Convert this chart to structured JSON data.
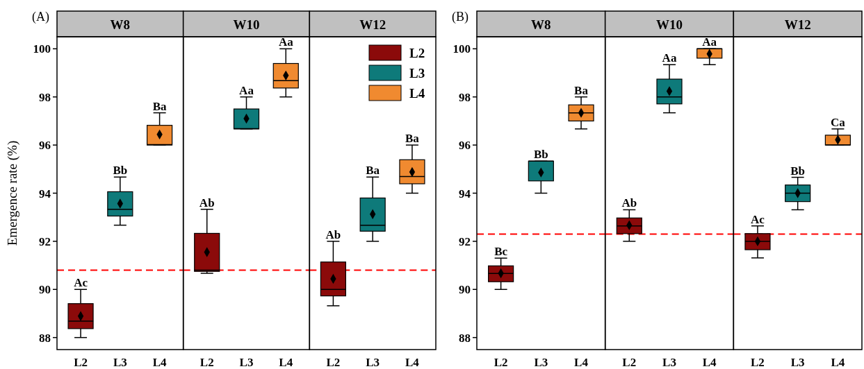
{
  "chart_data": [
    {
      "type": "box",
      "title": "W8",
      "ylabel": "Emergence rate (%)",
      "categories": [
        "L2",
        "L3",
        "L4"
      ],
      "ylim": [
        87.5,
        100.5
      ],
      "yticks": [
        88,
        90,
        92,
        94,
        96,
        98,
        100
      ],
      "marker": "diamond",
      "legend": false,
      "series": [
        {
          "color": "#8b0a0a",
          "boxes": [
            {
              "low": 88,
              "q1": 88.37,
              "median": 88.68,
              "q3": 89.41,
              "high": 90,
              "mean": 88.89
            },
            null,
            null
          ]
        },
        {
          "color": "#0e7a7a",
          "boxes": [
            null,
            {
              "low": 92.67,
              "q1": 93.05,
              "median": 93.33,
              "q3": 94.06,
              "high": 94.67,
              "mean": 93.57
            },
            null
          ]
        },
        {
          "color": "#f08a30",
          "boxes": [
            null,
            null,
            {
              "low": 96,
              "q1": 96,
              "median": 96.02,
              "q3": 96.82,
              "high": 97.34,
              "mean": 96.44
            }
          ]
        }
      ],
      "ref_lines": [
        {
          "axis": "y",
          "value": 90.8,
          "color": "#ff0000",
          "line_style": "dashed"
        }
      ],
      "annotations": [
        "(A)",
        {
          "text": "Ac",
          "x": "L2",
          "y": 90
        },
        {
          "text": "Bb",
          "x": "L3",
          "y": 94.67
        },
        {
          "text": "Ba",
          "x": "L4",
          "y": 97.34
        }
      ]
    },
    {
      "type": "box",
      "title": "W10",
      "categories": [
        "L2",
        "L3",
        "L4"
      ],
      "ylim": [
        87.5,
        100.5
      ],
      "tick_labels": "x",
      "marker": "diamond",
      "legend": false,
      "series": [
        {
          "color": "#8b0a0a",
          "boxes": [
            {
              "low": 90.67,
              "q1": 90.75,
              "median": 90.8,
              "q3": 92.33,
              "high": 93.33,
              "mean": 91.55
            },
            null,
            null
          ]
        },
        {
          "color": "#0e7a7a",
          "boxes": [
            null,
            {
              "low": 96.67,
              "q1": 96.67,
              "median": 96.68,
              "q3": 97.5,
              "high": 98,
              "mean": 97.1
            },
            null
          ]
        },
        {
          "color": "#f08a30",
          "boxes": [
            null,
            null,
            {
              "low": 98,
              "q1": 98.37,
              "median": 98.68,
              "q3": 99.39,
              "high": 100,
              "mean": 98.89
            }
          ]
        }
      ],
      "ref_lines": [
        {
          "axis": "y",
          "value": 90.8,
          "color": "#ff0000",
          "line_style": "dashed"
        }
      ],
      "annotations": [
        {
          "text": "Ab",
          "x": "L2",
          "y": 93.33
        },
        {
          "text": "Aa",
          "x": "L3",
          "y": 98
        },
        {
          "text": "Aa",
          "x": "L4",
          "y": 100
        }
      ]
    },
    {
      "type": "box",
      "title": "W12",
      "categories": [
        "L2",
        "L3",
        "L4"
      ],
      "ylim": [
        87.5,
        100.5
      ],
      "tick_labels": "x",
      "marker": "diamond",
      "legend": "top right",
      "series": [
        {
          "name": "L2",
          "color": "#8b0a0a",
          "boxes": [
            {
              "low": 89.32,
              "q1": 89.73,
              "median": 90,
              "q3": 91.14,
              "high": 92,
              "mean": 90.44
            },
            null,
            null
          ]
        },
        {
          "name": "L3",
          "color": "#0e7a7a",
          "boxes": [
            null,
            {
              "low": 92,
              "q1": 92.42,
              "median": 92.67,
              "q3": 93.8,
              "high": 94.67,
              "mean": 93.13
            },
            null
          ]
        },
        {
          "name": "L4",
          "color": "#f08a30",
          "boxes": [
            null,
            null,
            {
              "low": 94,
              "q1": 94.39,
              "median": 94.69,
              "q3": 95.39,
              "high": 96,
              "mean": 94.88
            }
          ]
        }
      ],
      "ref_lines": [
        {
          "axis": "y",
          "value": 90.8,
          "color": "#ff0000",
          "line_style": "dashed"
        }
      ],
      "annotations": [
        {
          "text": "Ab",
          "x": "L2",
          "y": 92
        },
        {
          "text": "Ba",
          "x": "L3",
          "y": 94.67
        },
        {
          "text": "Ba",
          "x": "L4",
          "y": 96
        }
      ]
    },
    {
      "type": "box",
      "title": "W8",
      "categories": [
        "L2",
        "L3",
        "L4"
      ],
      "ylim": [
        87.5,
        100.5
      ],
      "yticks": [
        88,
        90,
        92,
        94,
        96,
        98,
        100
      ],
      "marker": "diamond",
      "legend": false,
      "series": [
        {
          "color": "#8b0a0a",
          "boxes": [
            {
              "low": 90,
              "q1": 90.32,
              "median": 90.66,
              "q3": 90.98,
              "high": 91.3,
              "mean": 90.67
            },
            null,
            null
          ]
        },
        {
          "color": "#0e7a7a",
          "boxes": [
            null,
            {
              "low": 94,
              "q1": 94.51,
              "median": 95.33,
              "q3": 95.33,
              "high": 95.33,
              "mean": 94.86
            },
            null
          ]
        },
        {
          "color": "#f08a30",
          "boxes": [
            null,
            null,
            {
              "low": 96.67,
              "q1": 97,
              "median": 97.34,
              "q3": 97.67,
              "high": 98,
              "mean": 97.34
            }
          ]
        }
      ],
      "ref_lines": [
        {
          "axis": "y",
          "value": 92.3,
          "color": "#ff0000",
          "line_style": "dashed"
        }
      ],
      "annotations": [
        "(B)",
        {
          "text": "Bc",
          "x": "L2",
          "y": 91.3
        },
        {
          "text": "Bb",
          "x": "L3",
          "y": 95.33
        },
        {
          "text": "Ba",
          "x": "L4",
          "y": 98
        }
      ]
    },
    {
      "type": "box",
      "title": "W10",
      "categories": [
        "L2",
        "L3",
        "L4"
      ],
      "ylim": [
        87.5,
        100.5
      ],
      "tick_labels": "x",
      "marker": "diamond",
      "legend": false,
      "series": [
        {
          "color": "#8b0a0a",
          "boxes": [
            {
              "low": 92,
              "q1": 92.32,
              "median": 92.64,
              "q3": 92.97,
              "high": 93.31,
              "mean": 92.67
            },
            null,
            null
          ]
        },
        {
          "color": "#0e7a7a",
          "boxes": [
            null,
            {
              "low": 97.34,
              "q1": 97.71,
              "median": 98,
              "q3": 98.74,
              "high": 99.34,
              "mean": 98.24
            },
            null
          ]
        },
        {
          "color": "#f08a30",
          "boxes": [
            null,
            null,
            {
              "low": 99.34,
              "q1": 99.61,
              "median": 100,
              "q3": 100,
              "high": 100,
              "mean": 99.79
            }
          ]
        }
      ],
      "ref_lines": [
        {
          "axis": "y",
          "value": 92.3,
          "color": "#ff0000",
          "line_style": "dashed"
        }
      ],
      "annotations": [
        {
          "text": "Ab",
          "x": "L2",
          "y": 93.31
        },
        {
          "text": "Aa",
          "x": "L3",
          "y": 99.34
        },
        {
          "text": "Aa",
          "x": "L4",
          "y": 100
        }
      ]
    },
    {
      "type": "box",
      "title": "W12",
      "categories": [
        "L2",
        "L3",
        "L4"
      ],
      "ylim": [
        87.5,
        100.5
      ],
      "tick_labels": "x",
      "marker": "diamond",
      "legend": false,
      "series": [
        {
          "color": "#8b0a0a",
          "boxes": [
            {
              "low": 91.31,
              "q1": 91.65,
              "median": 92,
              "q3": 92.32,
              "high": 92.64,
              "mean": 92
            },
            null,
            null
          ]
        },
        {
          "color": "#0e7a7a",
          "boxes": [
            null,
            {
              "low": 93.31,
              "q1": 93.65,
              "median": 94,
              "q3": 94.34,
              "high": 94.66,
              "mean": 94
            },
            null
          ]
        },
        {
          "color": "#f08a30",
          "boxes": [
            null,
            null,
            {
              "low": 96,
              "q1": 96,
              "median": 96,
              "q3": 96.41,
              "high": 96.67,
              "mean": 96.22
            }
          ]
        }
      ],
      "ref_lines": [
        {
          "axis": "y",
          "value": 92.3,
          "color": "#ff0000",
          "line_style": "dashed"
        }
      ],
      "annotations": [
        {
          "text": "Ac",
          "x": "L2",
          "y": 92.64
        },
        {
          "text": "Bb",
          "x": "L3",
          "y": 94.66
        },
        {
          "text": "Ca",
          "x": "L4",
          "y": 96.67
        }
      ]
    }
  ]
}
